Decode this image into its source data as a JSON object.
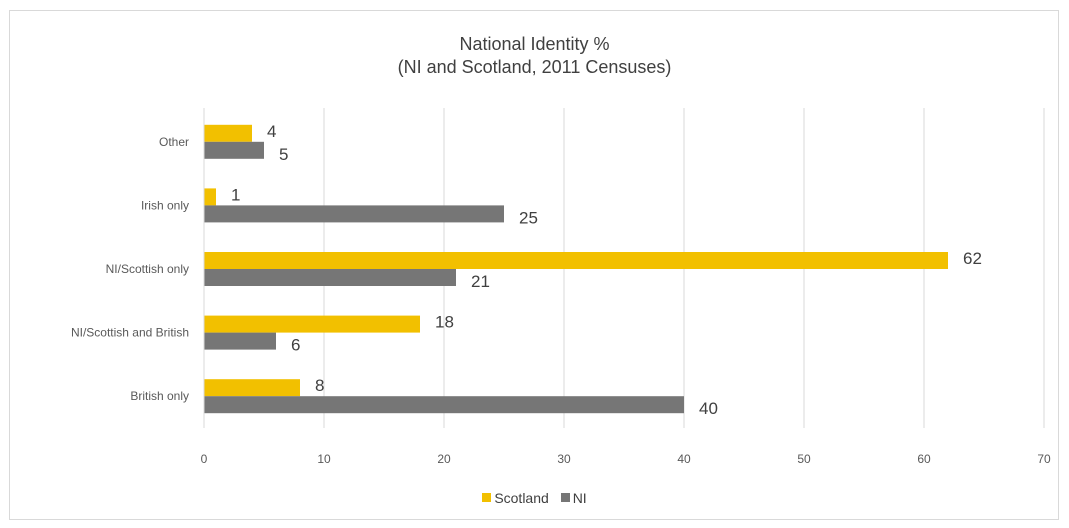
{
  "chart_data": {
    "type": "bar",
    "orientation": "horizontal",
    "title": "National Identity %",
    "subtitle": "(NI and Scotland, 2011 Censuses)",
    "categories": [
      "Other",
      "Irish only",
      "NI/Scottish only",
      "NI/Scottish and British",
      "British only"
    ],
    "series": [
      {
        "name": "Scotland",
        "color": "#f2c000",
        "values": [
          4,
          1,
          62,
          18,
          8
        ]
      },
      {
        "name": "NI",
        "color": "#767676",
        "values": [
          5,
          25,
          21,
          6,
          40
        ]
      }
    ],
    "xlim": [
      0,
      70
    ],
    "xticks": [
      0,
      10,
      20,
      30,
      40,
      50,
      60,
      70
    ],
    "grid": true,
    "legend_position": "bottom"
  }
}
